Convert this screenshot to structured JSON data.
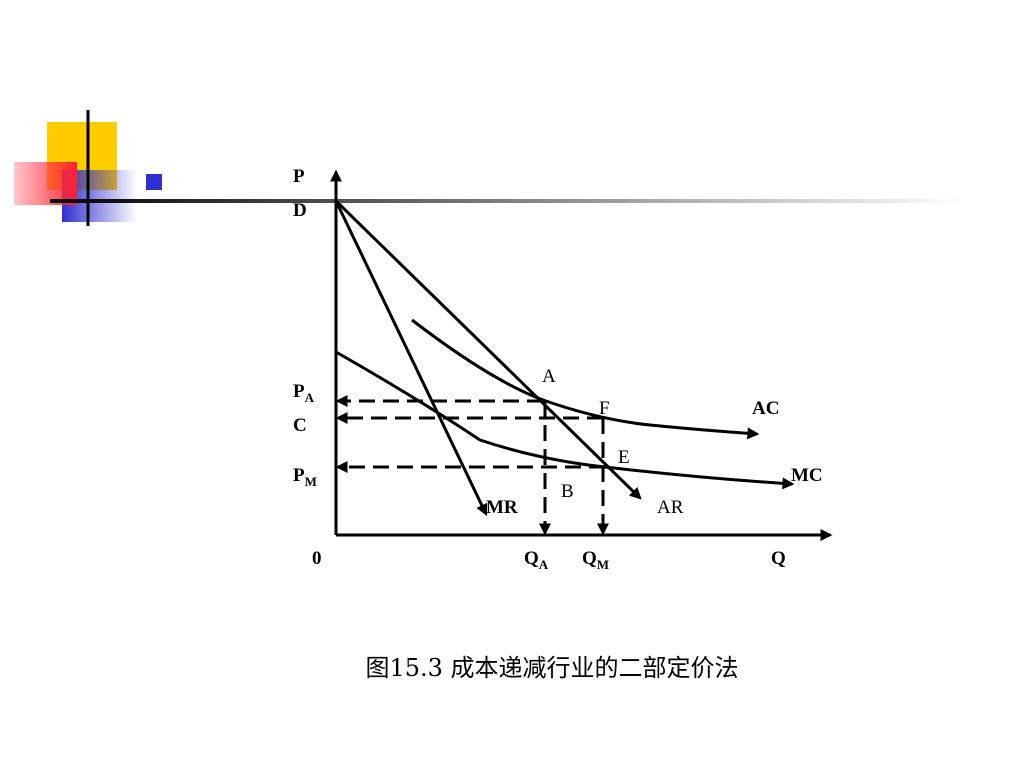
{
  "axes": {
    "y_label": "P",
    "x_label": "Q",
    "origin": "0"
  },
  "price_labels": {
    "d": "D",
    "p_a": {
      "base": "P",
      "sub": "A"
    },
    "c": "C",
    "p_m": {
      "base": "P",
      "sub": "M"
    }
  },
  "quantity_labels": {
    "q_a": {
      "base": "Q",
      "sub": "A"
    },
    "q_m": {
      "base": "Q",
      "sub": "M"
    }
  },
  "curves": {
    "mr": "MR",
    "ar": "AR",
    "ac": "AC",
    "mc": "MC"
  },
  "points": {
    "a": "A",
    "f": "F",
    "e": "E",
    "b": "B"
  },
  "caption": "图15.3 成本递减行业的二部定价法"
}
